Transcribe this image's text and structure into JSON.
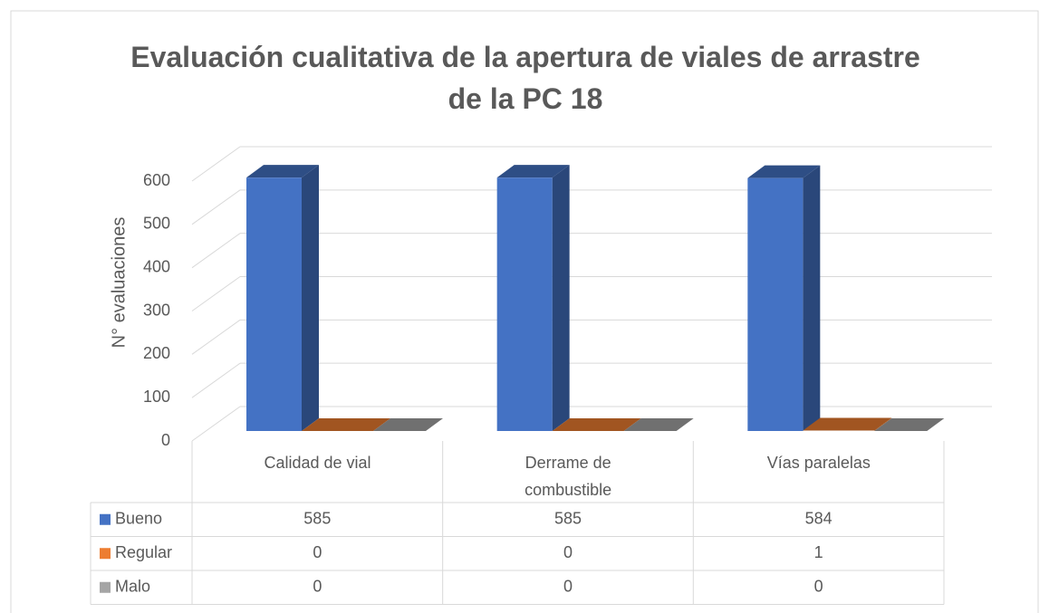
{
  "chart_data": {
    "type": "bar3d",
    "title": "Evaluación cualitativa de la apertura de viales de arrastre de la PC 18",
    "y_label": "N° evaluaciones",
    "categories": [
      "Calidad de vial",
      "Derrame de combustible",
      "Vías paralelas"
    ],
    "series": [
      {
        "name": "Bueno",
        "color": "#4472c4",
        "values": [
          585,
          585,
          584
        ]
      },
      {
        "name": "Regular",
        "color": "#ed7d31",
        "values": [
          0,
          0,
          1
        ]
      },
      {
        "name": "Malo",
        "color": "#a5a5a5",
        "values": [
          0,
          0,
          0
        ]
      }
    ],
    "ylim": [
      0,
      600
    ],
    "yticks": [
      0,
      100,
      200,
      300,
      400,
      500,
      600
    ],
    "grid": true,
    "data_table": true
  }
}
